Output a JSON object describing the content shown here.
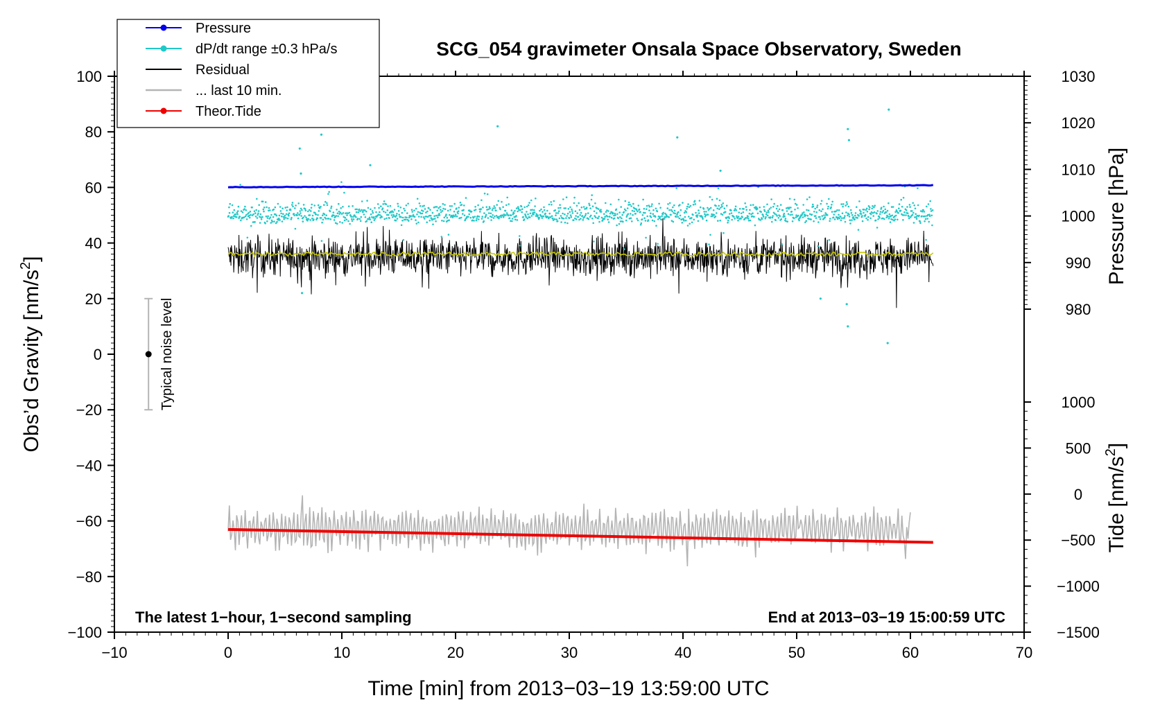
{
  "chart_data": {
    "type": "line",
    "title": "SCG_054 gravimeter Onsala Space Observatory, Sweden",
    "xlabel": "Time [min] from 2013−03−19 13:59:00 UTC",
    "ylabel_left": "Obs’d Gravity [nm/s",
    "ylabel_left_sup": "2",
    "ylabel_left_end": "]",
    "ylabel_right_pressure": "Pressure [hPa]",
    "ylabel_right_tide": "Tide [nm/s",
    "ylabel_right_tide_sup": "2",
    "ylabel_right_tide_end": "]",
    "xlim": [
      -10,
      70
    ],
    "ylim": [
      -100,
      100
    ],
    "pressure_lim": [
      980,
      1030
    ],
    "tide_lim": [
      -1500,
      1000
    ],
    "x_ticks": [
      "−10",
      "0",
      "10",
      "20",
      "30",
      "40",
      "50",
      "60",
      "70"
    ],
    "y_ticks": [
      "−100",
      "−80",
      "−60",
      "−40",
      "−20",
      "0",
      "20",
      "40",
      "60",
      "80",
      "100"
    ],
    "pressure_ticks": [
      "980",
      "990",
      "1000",
      "1010",
      "1020",
      "1030"
    ],
    "tide_ticks": [
      "−1500",
      "−1000",
      "−500",
      "0",
      "500",
      "1000"
    ],
    "notes": {
      "left": "The latest 1−hour, 1−second sampling",
      "right": "End at 2013−03−19 15:00:59 UTC",
      "noise": "Typical noise level"
    },
    "noise_bar": {
      "x": -7,
      "center": 0,
      "half_range": 20
    },
    "legend": [
      {
        "label": "Pressure",
        "color": "#0000ee",
        "marker": true
      },
      {
        "label": "dP/dt range ±0.3 hPa/s",
        "color": "#20c8c8",
        "marker": true
      },
      {
        "label": "Residual",
        "color": "#000000",
        "marker": false
      },
      {
        "label": "... last 10 min.",
        "color": "#b4b4b4",
        "marker": false
      },
      {
        "label": "Theor.Tide",
        "color": "#ee0000",
        "marker": true
      }
    ],
    "series": [
      {
        "name": "Pressure",
        "axis": "pressure",
        "color": "#0000ee",
        "x": [
          0,
          62
        ],
        "values": [
          1006.2,
          1006.6
        ]
      },
      {
        "name": "dP/dt range ±0.3 hPa/s",
        "axis": "gravity",
        "color": "#20c8c8",
        "center": 50,
        "spread": 5,
        "x_range": [
          0,
          62
        ]
      },
      {
        "name": "Residual",
        "axis": "gravity",
        "color": "#000000",
        "center": 35,
        "spread": 7,
        "x_range": [
          0,
          62
        ]
      },
      {
        "name": "Residual smoothed",
        "axis": "gravity",
        "color": "#c8c800",
        "center": 36,
        "x_range": [
          0,
          62
        ]
      },
      {
        "name": "... last 10 min.",
        "axis": "gravity",
        "color": "#b4b4b4",
        "center": -63,
        "spread": 6,
        "x_range": [
          0,
          60
        ]
      },
      {
        "name": "Theor.Tide",
        "axis": "tide",
        "color": "#ee0000",
        "x": [
          0,
          62
        ],
        "values": [
          -385,
          -525
        ]
      }
    ],
    "outlier_points": [
      [
        6.3,
        74
      ],
      [
        8.2,
        79
      ],
      [
        23.7,
        82
      ],
      [
        39.5,
        78
      ],
      [
        58.1,
        88
      ],
      [
        54.5,
        81
      ],
      [
        54.6,
        77
      ],
      [
        6.5,
        22
      ],
      [
        52.1,
        20
      ],
      [
        54.4,
        18
      ],
      [
        54.5,
        10
      ],
      [
        58.0,
        4
      ],
      [
        6.4,
        65
      ],
      [
        12.5,
        68
      ],
      [
        43.3,
        66
      ]
    ]
  }
}
